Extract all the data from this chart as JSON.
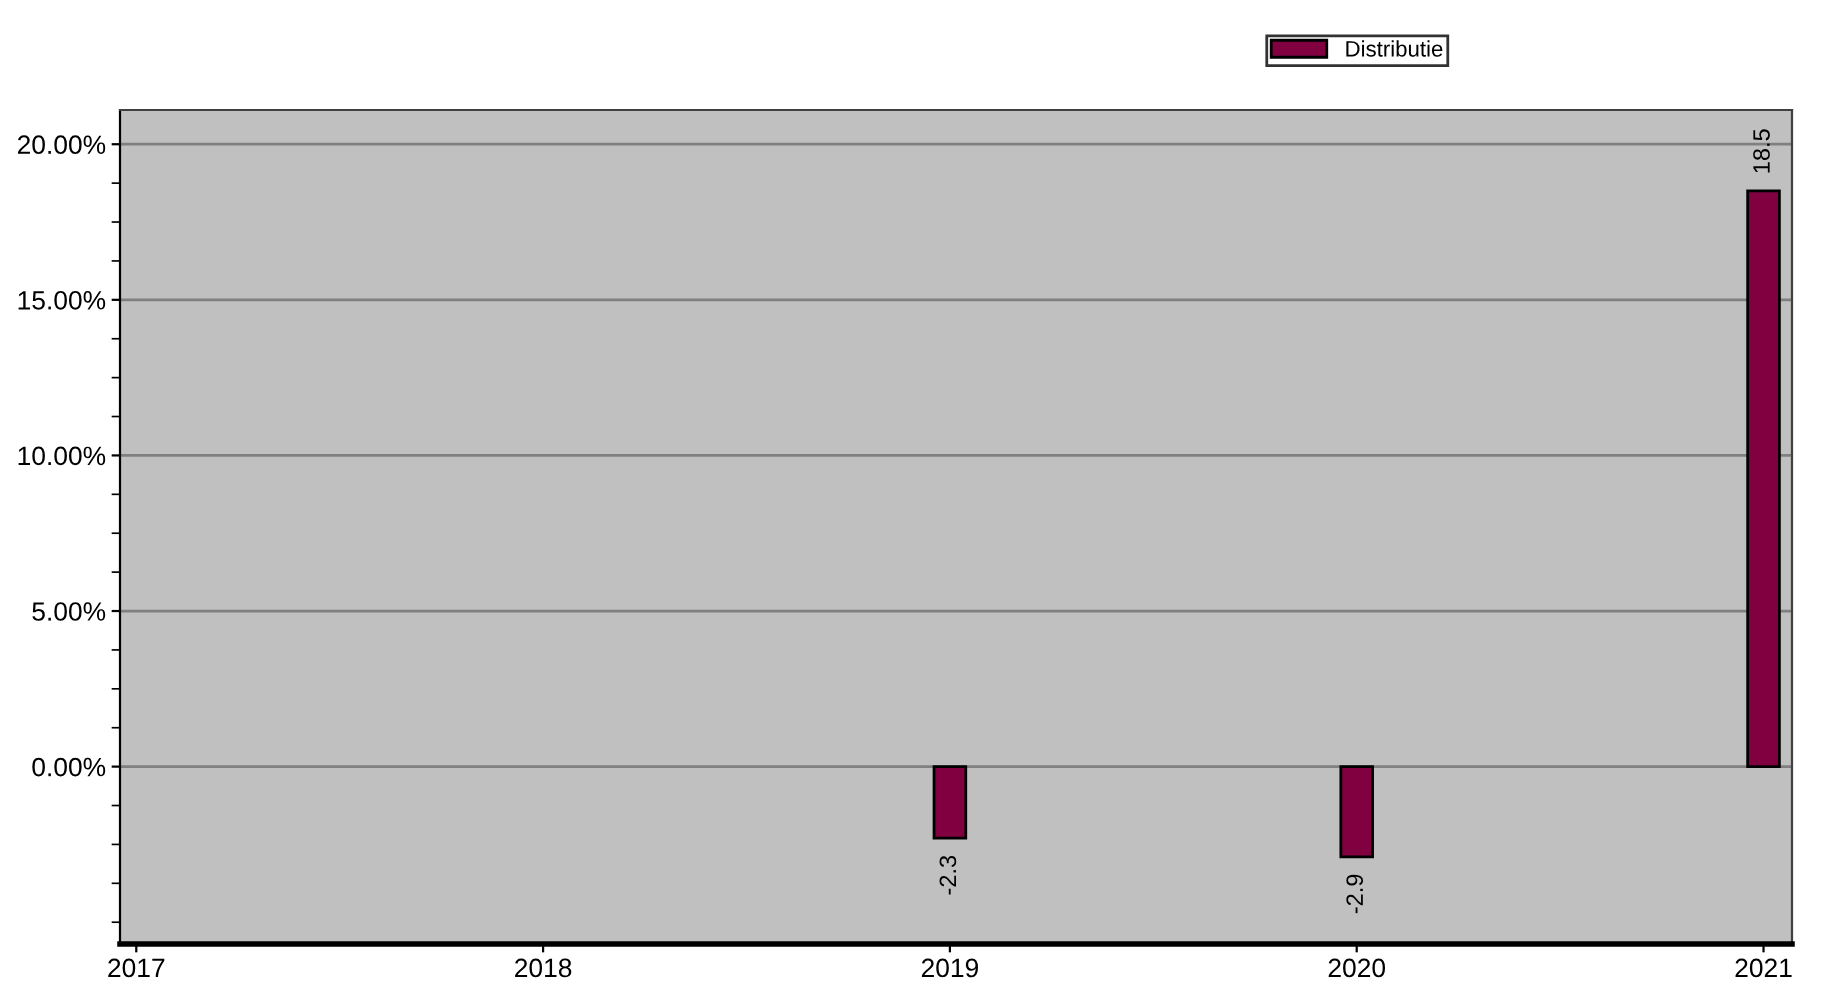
{
  "chart_data": {
    "type": "bar",
    "x": [
      2019,
      2020,
      2021
    ],
    "series": [
      {
        "name": "Distributie",
        "color": "#800040",
        "values": [
          -2.3,
          -2.9,
          18.5
        ]
      }
    ],
    "xlim": [
      2016.96,
      2021.07
    ],
    "xticks": [
      2017,
      2018,
      2019,
      2020,
      2021
    ],
    "ylim": [
      -5.7,
      21.1
    ],
    "yticks": [
      {
        "value": 0,
        "label": "0.00%"
      },
      {
        "value": 5,
        "label": "5.00%"
      },
      {
        "value": 10,
        "label": "10.00%"
      },
      {
        "value": 15,
        "label": "15.00%"
      },
      {
        "value": 20,
        "label": "20.00%"
      }
    ],
    "grid": "y",
    "legend": "top",
    "data_labels": true
  }
}
